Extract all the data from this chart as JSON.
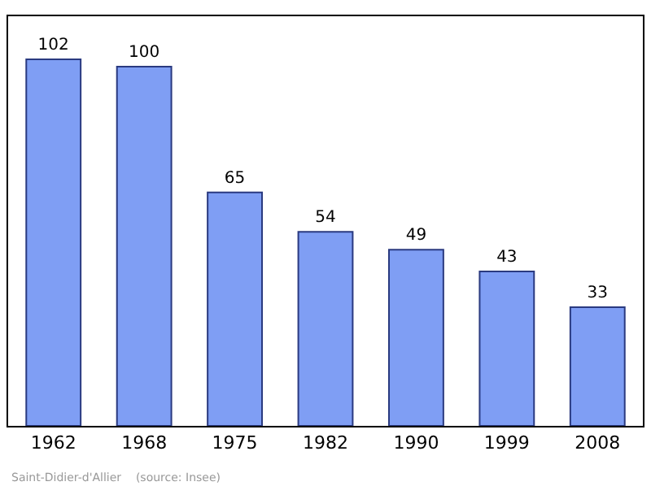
{
  "chart_data": {
    "type": "bar",
    "categories": [
      "1962",
      "1968",
      "1975",
      "1982",
      "1990",
      "1999",
      "2008"
    ],
    "values": [
      102,
      100,
      65,
      54,
      49,
      43,
      33
    ],
    "color": "#7f9ef4",
    "data_labels": true,
    "ylim": [
      0,
      114
    ],
    "tick_labels": "x",
    "legend": false,
    "annotations": [
      "Saint-Didier-d'Allier    (source: Insee)"
    ]
  }
}
